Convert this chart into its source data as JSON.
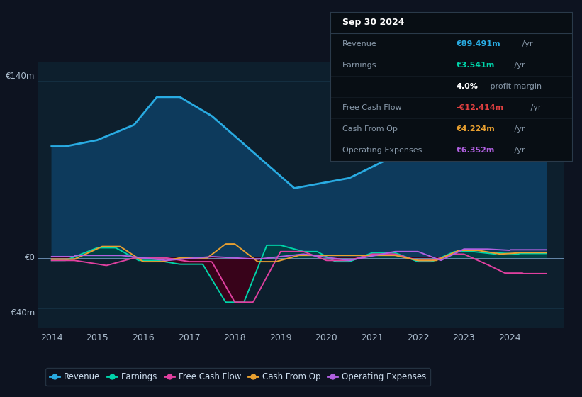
{
  "background_color": "#0d1320",
  "plot_bg_color": "#0d1f2d",
  "ylim": [
    -55,
    155
  ],
  "xlim": [
    2013.7,
    2025.2
  ],
  "xticks": [
    2014,
    2015,
    2016,
    2017,
    2018,
    2019,
    2020,
    2021,
    2022,
    2023,
    2024
  ],
  "ylabel_top": "€140m",
  "ylabel_zero": "€0",
  "ylabel_bottom": "-€40m",
  "colors": {
    "revenue": "#29abe2",
    "revenue_fill": "#0d3a5c",
    "earnings_fill_pos": "#004040",
    "earnings_fill_neg": "#3d0018",
    "earnings": "#00d4aa",
    "free_cash_flow": "#e040a0",
    "cash_from_op": "#e8a030",
    "operating_expenses": "#b060e0",
    "zero_line": "#6688aa",
    "grid_line": "#1a3a50"
  },
  "info_title": "Sep 30 2024",
  "info_rows": [
    {
      "label": "Revenue",
      "value": "€89.491m",
      "suffix": " /yr",
      "value_color": "#29abe2",
      "label_color": "#8899aa"
    },
    {
      "label": "Earnings",
      "value": "€3.541m",
      "suffix": " /yr",
      "value_color": "#00d4aa",
      "label_color": "#8899aa"
    },
    {
      "label": "",
      "value": "4.0%",
      "suffix": " profit margin",
      "value_color": "#ffffff",
      "label_color": "#8899aa"
    },
    {
      "label": "Free Cash Flow",
      "value": "-€12.414m",
      "suffix": " /yr",
      "value_color": "#e04040",
      "label_color": "#8899aa"
    },
    {
      "label": "Cash From Op",
      "value": "€4.224m",
      "suffix": " /yr",
      "value_color": "#e8a030",
      "label_color": "#8899aa"
    },
    {
      "label": "Operating Expenses",
      "value": "€6.352m",
      "suffix": " /yr",
      "value_color": "#b060e0",
      "label_color": "#8899aa"
    }
  ],
  "legend_labels": [
    "Revenue",
    "Earnings",
    "Free Cash Flow",
    "Cash From Op",
    "Operating Expenses"
  ]
}
